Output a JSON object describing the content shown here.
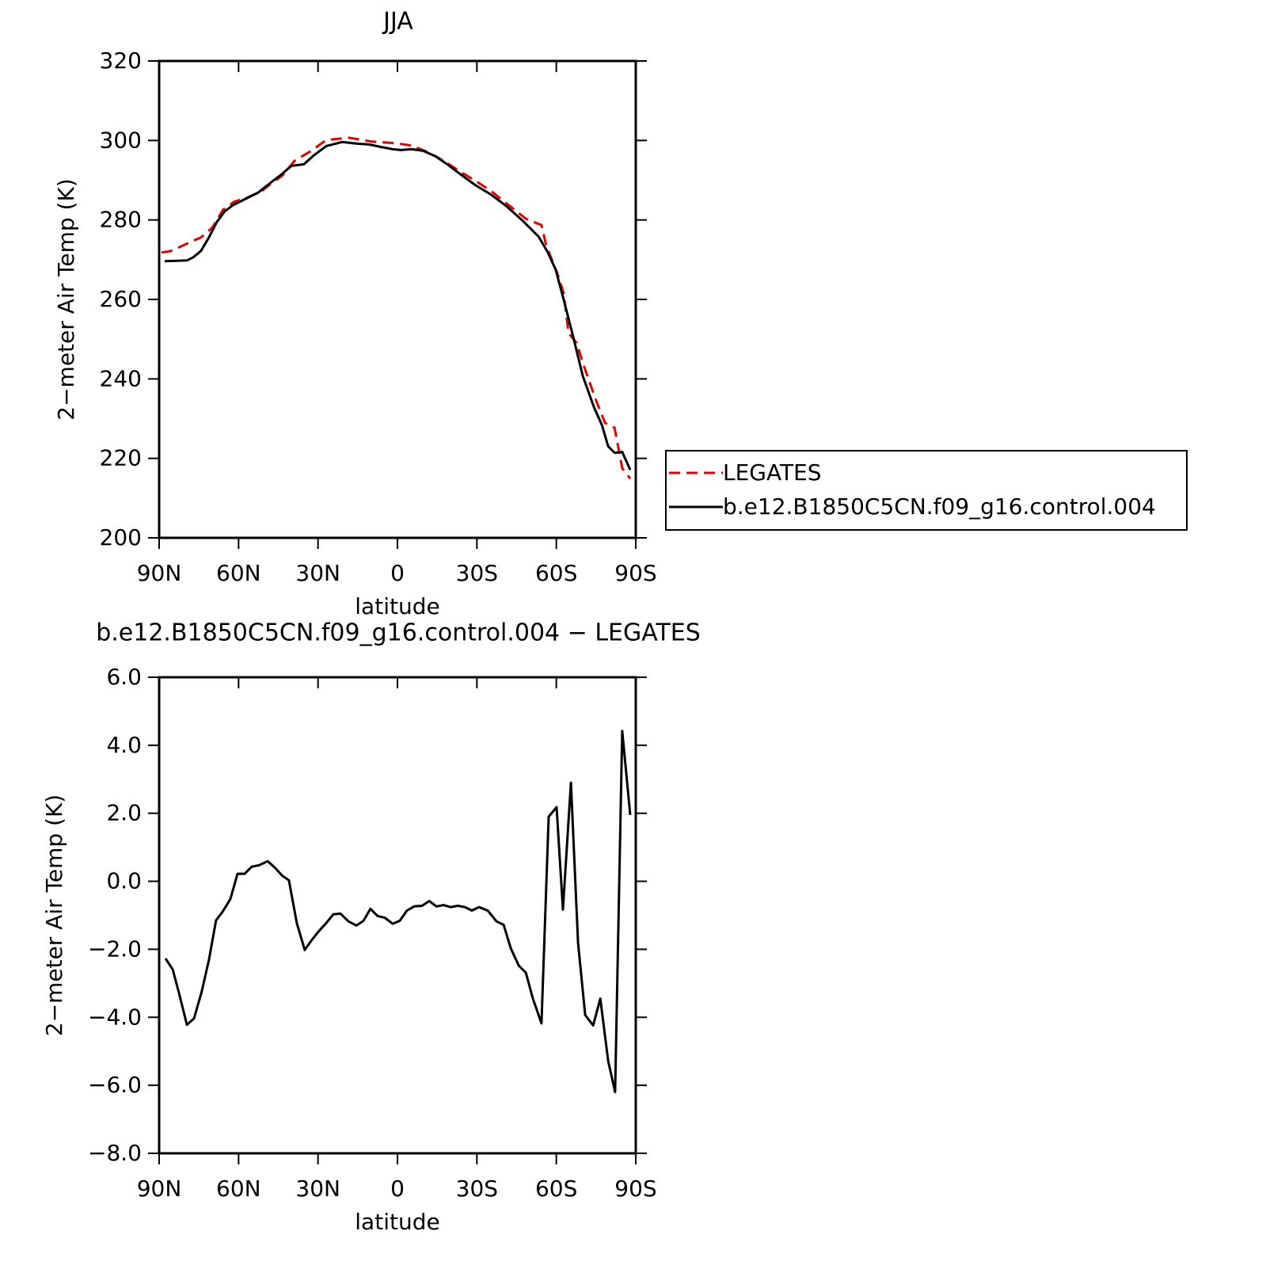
{
  "chart_data": [
    {
      "type": "line",
      "title": "JJA",
      "x_label": "latitude",
      "y_label": "2−meter Air Temp (K)",
      "xlim": [
        90,
        -90
      ],
      "xticks": [
        {
          "value": 90,
          "label": "90N"
        },
        {
          "value": 60,
          "label": "60N"
        },
        {
          "value": 30,
          "label": "30N"
        },
        0,
        {
          "value": -30,
          "label": "30S"
        },
        {
          "value": -60,
          "label": "60S"
        },
        {
          "value": -90,
          "label": "90S"
        }
      ],
      "ylim": [
        200,
        320
      ],
      "yticks": [
        200,
        220,
        240,
        260,
        280,
        300,
        320
      ],
      "legend": "right",
      "series": [
        {
          "name": "LEGATES",
          "color": "#e00000",
          "linestyle": "dashed",
          "x": [
            89.1,
            85.5,
            78.3,
            74.2,
            70.0,
            65.8,
            61.6,
            56.8,
            51.4,
            47.8,
            43.6,
            38.8,
            32.8,
            26.9,
            18.5,
            9.6,
            0.6,
            -5.5,
            -11.4,
            -17.4,
            -23.4,
            -29.3,
            -35.3,
            -41.3,
            -48.5,
            -54.4,
            -56.2,
            -60.4,
            -62.8,
            -64.6,
            -67.6,
            -70.6,
            -74.8,
            -78.4,
            -82.0,
            -84.9,
            -87.9
          ],
          "values": [
            271.8,
            272.2,
            274.4,
            275.6,
            278.0,
            282.6,
            284.6,
            285.6,
            287.2,
            289.1,
            291.1,
            294.9,
            297.3,
            300.1,
            300.7,
            299.7,
            299.3,
            298.7,
            297.1,
            294.9,
            292.3,
            289.9,
            287.3,
            284.1,
            280.3,
            278.7,
            273.5,
            266.5,
            261.5,
            251.5,
            249.1,
            242.9,
            234.9,
            228.9,
            227.7,
            217.5,
            214.9
          ]
        },
        {
          "name": "b.e12.B1850C5CN.f09_g16.control.004",
          "color": "#000000",
          "linestyle": "solid",
          "x": [
            87.9,
            79.5,
            77.1,
            74.2,
            71.2,
            68.2,
            65.3,
            62.2,
            57.4,
            52.6,
            48.4,
            43.6,
            40.0,
            35.3,
            31.7,
            26.9,
            20.9,
            15.5,
            10.7,
            6.5,
            1.7,
            -1.3,
            -5.5,
            -9.7,
            -14.4,
            -19.2,
            -24.0,
            -29.3,
            -35.3,
            -41.3,
            -47.3,
            -53.3,
            -56.8,
            -59.8,
            -62.8,
            -66.4,
            -70.0,
            -74.2,
            -77.2,
            -79.6,
            -82.0,
            -84.9,
            -87.9
          ],
          "values": [
            269.6,
            269.8,
            270.6,
            272.2,
            275.6,
            279.5,
            282.1,
            283.7,
            285.3,
            286.9,
            289.1,
            291.6,
            293.6,
            294.0,
            296.2,
            298.6,
            299.6,
            299.2,
            299.0,
            298.4,
            297.8,
            297.6,
            297.8,
            297.4,
            296.0,
            293.8,
            291.4,
            288.8,
            286.4,
            283.4,
            279.8,
            275.8,
            271.8,
            267.4,
            259.9,
            250.5,
            240.7,
            232.9,
            228.4,
            223.0,
            221.4,
            221.6,
            217.1
          ]
        }
      ]
    },
    {
      "type": "line",
      "title": "b.e12.B1850C5CN.f09_g16.control.004 − LEGATES",
      "x_label": "latitude",
      "y_label": "2−meter Air Temp (K)",
      "xlim": [
        90,
        -90
      ],
      "xticks": [
        {
          "value": 90,
          "label": "90N"
        },
        {
          "value": 60,
          "label": "60N"
        },
        {
          "value": 30,
          "label": "30N"
        },
        0,
        {
          "value": -30,
          "label": "30S"
        },
        {
          "value": -60,
          "label": "60S"
        },
        {
          "value": -90,
          "label": "90S"
        }
      ],
      "ylim": [
        -8,
        6
      ],
      "yticks": [
        {
          "value": -8,
          "label": "−8.0"
        },
        {
          "value": -6,
          "label": "−6.0"
        },
        {
          "value": -4,
          "label": "−4.0"
        },
        {
          "value": -2,
          "label": "−2.0"
        },
        {
          "value": 0,
          "label": "0.0"
        },
        {
          "value": 2,
          "label": "2.0"
        },
        {
          "value": 4,
          "label": "4.0"
        },
        {
          "value": 6,
          "label": "6.0"
        }
      ],
      "color": "#000000",
      "x": [
        87.6,
        84.9,
        82.5,
        79.5,
        76.8,
        73.9,
        71.2,
        68.5,
        65.8,
        63.1,
        60.4,
        57.7,
        55.0,
        52.3,
        49.0,
        46.3,
        43.6,
        41.0,
        38.0,
        35.0,
        32.3,
        29.6,
        26.9,
        24.2,
        21.5,
        18.5,
        15.5,
        12.8,
        10.2,
        7.5,
        4.8,
        1.8,
        -0.9,
        -3.6,
        -6.3,
        -9.3,
        -12.0,
        -14.7,
        -17.4,
        -20.1,
        -22.8,
        -25.5,
        -28.1,
        -30.8,
        -34.1,
        -37.4,
        -40.1,
        -42.8,
        -45.8,
        -48.5,
        -51.1,
        -54.4,
        -57.1,
        -60.1,
        -62.5,
        -65.5,
        -68.2,
        -70.9,
        -73.9,
        -76.6,
        -79.6,
        -82.2,
        -84.9,
        -87.9
      ],
      "values": [
        -2.27,
        -2.59,
        -3.29,
        -4.22,
        -4.03,
        -3.24,
        -2.31,
        -1.15,
        -0.87,
        -0.52,
        0.22,
        0.22,
        0.43,
        0.47,
        0.59,
        0.4,
        0.17,
        0.03,
        -1.23,
        -2.02,
        -1.72,
        -1.46,
        -1.23,
        -0.97,
        -0.95,
        -1.18,
        -1.3,
        -1.16,
        -0.81,
        -1.02,
        -1.07,
        -1.25,
        -1.16,
        -0.86,
        -0.74,
        -0.72,
        -0.58,
        -0.74,
        -0.7,
        -0.76,
        -0.72,
        -0.76,
        -0.86,
        -0.76,
        -0.86,
        -1.18,
        -1.28,
        -1.97,
        -2.48,
        -2.69,
        -3.44,
        -4.18,
        1.9,
        2.18,
        -0.83,
        2.9,
        -1.81,
        -3.93,
        -4.24,
        -3.45,
        -5.29,
        -6.2,
        4.42,
        1.95
      ]
    }
  ]
}
